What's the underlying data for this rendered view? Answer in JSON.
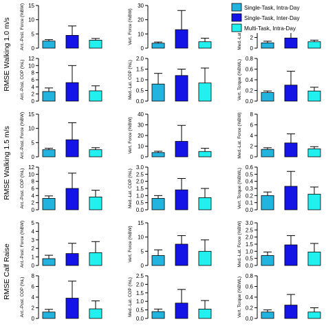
{
  "colors": {
    "single_task_intra_day": "#22b3df",
    "single_task_inter_day": "#1414e6",
    "multi_task_intra_day": "#22f0ee"
  },
  "legend": [
    {
      "label": "Single-Task, Intra-Day",
      "color": "#22b3df"
    },
    {
      "label": "Single-Task, Inter-Day",
      "color": "#1414e6"
    },
    {
      "label": "Multi-Task, Intra-Day",
      "color": "#22f0ee"
    }
  ],
  "row_labels": [
    "RMSE Walking 1.0 m/s",
    "RMSE Walking 1.5 m/s",
    "RMSE Calf Raise"
  ],
  "chart_data": [
    {
      "type": "bar",
      "ylabel": "Ant.-Post. Force (%BW)",
      "ylim": [
        0,
        15
      ],
      "yticks": [
        0,
        5,
        10,
        15
      ],
      "values": [
        2.5,
        4.5,
        2.8
      ],
      "errors": [
        0.5,
        3.3,
        0.6
      ]
    },
    {
      "type": "bar",
      "ylabel": "Vert. Force (%BW)",
      "ylim": [
        0,
        30
      ],
      "yticks": [
        0,
        10,
        20,
        30
      ],
      "values": [
        3.5,
        13,
        4.5
      ],
      "errors": [
        0.8,
        13.5,
        2.5
      ]
    },
    {
      "type": "bar",
      "ylabel": "Med.-Lat. Force (%BW)",
      "ylim": [
        0,
        8
      ],
      "yticks": [
        0,
        2,
        4,
        6,
        8
      ],
      "values": [
        1.0,
        1.9,
        1.2
      ],
      "errors": [
        0.3,
        1.2,
        0.3
      ]
    },
    {
      "type": "bar",
      "ylabel": "Ant.-Post. COP (%L)",
      "ylim": [
        0,
        12
      ],
      "yticks": [
        0,
        2,
        4,
        6,
        8,
        10,
        12
      ],
      "values": [
        2.7,
        5.2,
        2.9
      ],
      "errors": [
        1.0,
        4.8,
        1.4
      ]
    },
    {
      "type": "bar",
      "ylabel": "Med.-Lat. COP (%L)",
      "ylim": [
        0,
        2.0
      ],
      "yticks": [
        0.0,
        0.5,
        1.0,
        1.5,
        2.0
      ],
      "values": [
        0.8,
        1.2,
        0.85
      ],
      "errors": [
        0.5,
        0.3,
        0.7
      ]
    },
    {
      "type": "bar",
      "ylabel": "Vert. Torque (%BWL)",
      "ylim": [
        0,
        0.8
      ],
      "yticks": [
        0.0,
        0.2,
        0.4,
        0.6,
        0.8
      ],
      "values": [
        0.16,
        0.3,
        0.19
      ],
      "errors": [
        0.03,
        0.26,
        0.07
      ]
    },
    {
      "type": "bar",
      "ylabel": "Ant.-Post. Force (%BW)",
      "ylim": [
        0,
        15
      ],
      "yticks": [
        0,
        5,
        10,
        15
      ],
      "values": [
        2.5,
        6.0,
        2.5
      ],
      "errors": [
        0.5,
        6.0,
        0.7
      ]
    },
    {
      "type": "bar",
      "ylabel": "Vert. Force (%BW)",
      "ylim": [
        0,
        40
      ],
      "yticks": [
        0,
        10,
        20,
        30,
        40
      ],
      "values": [
        4.0,
        14.5,
        5.0
      ],
      "errors": [
        1.2,
        15.0,
        3.0
      ]
    },
    {
      "type": "bar",
      "ylabel": "Med.-Lat. Force (%BW)",
      "ylim": [
        0,
        8
      ],
      "yticks": [
        0,
        2,
        4,
        6,
        8
      ],
      "values": [
        1.4,
        2.6,
        1.5
      ],
      "errors": [
        0.3,
        1.7,
        0.4
      ]
    },
    {
      "type": "bar",
      "ylabel": "Ant.-Post. COP (%L)",
      "ylim": [
        0,
        12
      ],
      "yticks": [
        0,
        2,
        4,
        6,
        8,
        10,
        12
      ],
      "values": [
        3.2,
        6.0,
        3.6
      ],
      "errors": [
        0.7,
        4.3,
        1.9
      ]
    },
    {
      "type": "bar",
      "ylabel": "Med.-Lat. COP (%L)",
      "ylim": [
        0,
        3.0
      ],
      "yticks": [
        0.0,
        0.5,
        1.0,
        1.5,
        2.0,
        2.5,
        3.0
      ],
      "values": [
        0.8,
        1.4,
        0.85
      ],
      "errors": [
        0.2,
        0.8,
        0.65
      ]
    },
    {
      "type": "bar",
      "ylabel": "Vert. Torque (%BWL)",
      "ylim": [
        0,
        0.6
      ],
      "yticks": [
        0.0,
        0.1,
        0.2,
        0.3,
        0.4,
        0.5,
        0.6
      ],
      "values": [
        0.2,
        0.33,
        0.22
      ],
      "errors": [
        0.05,
        0.21,
        0.1
      ]
    },
    {
      "type": "bar",
      "ylabel": "Ant.-Post. Force (%BW)",
      "ylim": [
        0,
        5
      ],
      "yticks": [
        0,
        1,
        2,
        3,
        4,
        5
      ],
      "values": [
        0.8,
        1.4,
        1.5
      ],
      "errors": [
        0.4,
        1.2,
        1.3
      ]
    },
    {
      "type": "bar",
      "ylabel": "Vert. Force (%BW)",
      "ylim": [
        0,
        15
      ],
      "yticks": [
        0,
        5,
        10,
        15
      ],
      "values": [
        3.5,
        7.5,
        5.0
      ],
      "errors": [
        2.0,
        3.0,
        4.0
      ]
    },
    {
      "type": "bar",
      "ylabel": "Med.-Lat. Force (%BW)",
      "ylim": [
        0,
        3.0
      ],
      "yticks": [
        0.0,
        0.5,
        1.0,
        1.5,
        2.0,
        2.5,
        3.0
      ],
      "values": [
        0.7,
        1.45,
        0.95
      ],
      "errors": [
        0.25,
        0.65,
        0.6
      ]
    },
    {
      "type": "bar",
      "ylabel": "Ant.-Post. COP (%L)",
      "ylim": [
        0,
        8
      ],
      "yticks": [
        0,
        2,
        4,
        6,
        8
      ],
      "values": [
        1.2,
        3.8,
        1.8
      ],
      "errors": [
        0.5,
        3.2,
        1.5
      ]
    },
    {
      "type": "bar",
      "ylabel": "Med.-Lat. COP (%L)",
      "ylim": [
        0,
        2.5
      ],
      "yticks": [
        0.0,
        0.5,
        1.0,
        1.5,
        2.0,
        2.5
      ],
      "values": [
        0.4,
        0.9,
        0.55
      ],
      "errors": [
        0.15,
        0.8,
        0.5
      ]
    },
    {
      "type": "bar",
      "ylabel": "Vert. Torque (%BWL)",
      "ylim": [
        0,
        0.8
      ],
      "yticks": [
        0.0,
        0.2,
        0.4,
        0.6,
        0.8
      ],
      "values": [
        0.12,
        0.25,
        0.12
      ],
      "errors": [
        0.04,
        0.2,
        0.08
      ]
    }
  ]
}
